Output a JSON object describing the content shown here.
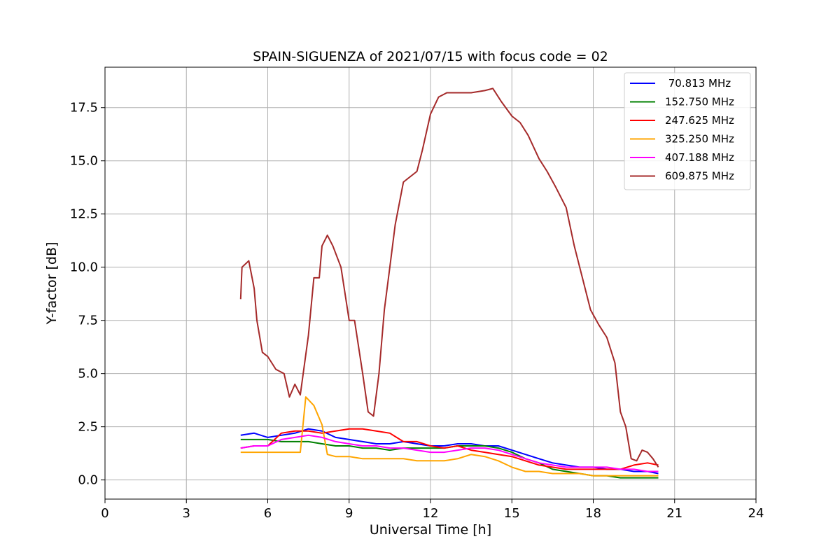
{
  "chart_data": {
    "type": "line",
    "title": "SPAIN-SIGUENZA of 2021/07/15 with focus code = 02",
    "xlabel": "Universal Time [h]",
    "ylabel": "Y-factor [dB]",
    "xlim": [
      0,
      24
    ],
    "ylim": [
      -0.9,
      19.4
    ],
    "xticks": [
      0,
      3,
      6,
      9,
      12,
      15,
      18,
      21,
      24
    ],
    "yticks": [
      0.0,
      2.5,
      5.0,
      7.5,
      10.0,
      12.5,
      15.0,
      17.5
    ],
    "xtick_labels": [
      "0",
      "3",
      "6",
      "9",
      "12",
      "15",
      "18",
      "21",
      "24"
    ],
    "ytick_labels": [
      "0.0",
      "2.5",
      "5.0",
      "7.5",
      "10.0",
      "12.5",
      "15.0",
      "17.5"
    ],
    "grid": true,
    "legend_position": "top-right",
    "series": [
      {
        "name": " 70.813 MHz",
        "color": "#0000ff",
        "x": [
          5.0,
          5.5,
          6.0,
          6.5,
          7.0,
          7.5,
          8.0,
          8.5,
          9.0,
          9.5,
          10.0,
          10.5,
          11.0,
          11.5,
          12.0,
          12.5,
          13.0,
          13.5,
          14.0,
          14.5,
          15.0,
          15.5,
          16.0,
          16.5,
          17.0,
          17.5,
          18.0,
          18.5,
          19.0,
          19.5,
          20.0,
          20.4
        ],
        "y": [
          2.1,
          2.2,
          2.0,
          2.1,
          2.2,
          2.4,
          2.3,
          2.0,
          1.9,
          1.8,
          1.7,
          1.7,
          1.8,
          1.7,
          1.6,
          1.6,
          1.7,
          1.7,
          1.6,
          1.6,
          1.4,
          1.2,
          1.0,
          0.8,
          0.7,
          0.6,
          0.6,
          0.5,
          0.5,
          0.4,
          0.4,
          0.3
        ]
      },
      {
        "name": "152.750 MHz",
        "color": "#008000",
        "x": [
          5.0,
          5.5,
          6.0,
          6.5,
          7.0,
          7.5,
          8.0,
          8.5,
          9.0,
          9.5,
          10.0,
          10.5,
          11.0,
          11.5,
          12.0,
          12.5,
          13.0,
          13.5,
          14.0,
          14.5,
          15.0,
          15.5,
          16.0,
          16.5,
          17.0,
          17.5,
          18.0,
          18.5,
          19.0,
          19.5,
          20.0,
          20.4
        ],
        "y": [
          1.9,
          1.9,
          1.9,
          1.8,
          1.8,
          1.8,
          1.7,
          1.6,
          1.6,
          1.5,
          1.5,
          1.4,
          1.5,
          1.5,
          1.5,
          1.5,
          1.6,
          1.6,
          1.6,
          1.5,
          1.3,
          1.0,
          0.8,
          0.5,
          0.4,
          0.3,
          0.2,
          0.2,
          0.1,
          0.1,
          0.1,
          0.1
        ]
      },
      {
        "name": "247.625 MHz",
        "color": "#ff0000",
        "x": [
          5.0,
          5.5,
          6.0,
          6.5,
          7.0,
          7.5,
          8.0,
          8.5,
          9.0,
          9.5,
          10.0,
          10.5,
          11.0,
          11.5,
          12.0,
          12.5,
          13.0,
          13.5,
          14.0,
          14.5,
          15.0,
          15.5,
          16.0,
          16.5,
          17.0,
          17.5,
          18.0,
          18.5,
          19.0,
          19.5,
          20.0,
          20.4
        ],
        "y": [
          1.5,
          1.6,
          1.6,
          2.2,
          2.3,
          2.3,
          2.2,
          2.3,
          2.4,
          2.4,
          2.3,
          2.2,
          1.8,
          1.8,
          1.6,
          1.5,
          1.6,
          1.4,
          1.3,
          1.2,
          1.1,
          0.9,
          0.7,
          0.6,
          0.5,
          0.5,
          0.5,
          0.5,
          0.5,
          0.7,
          0.8,
          0.7
        ]
      },
      {
        "name": "325.250 MHz",
        "color": "#ffa500",
        "x": [
          5.0,
          5.5,
          6.0,
          6.5,
          7.0,
          7.2,
          7.4,
          7.7,
          8.0,
          8.2,
          8.5,
          9.0,
          9.5,
          10.0,
          10.5,
          11.0,
          11.5,
          12.0,
          12.5,
          13.0,
          13.5,
          14.0,
          14.5,
          15.0,
          15.5,
          16.0,
          16.5,
          17.0,
          17.5,
          18.0,
          18.5,
          19.0,
          19.5,
          20.0,
          20.4
        ],
        "y": [
          1.3,
          1.3,
          1.3,
          1.3,
          1.3,
          1.3,
          3.9,
          3.5,
          2.6,
          1.2,
          1.1,
          1.1,
          1.0,
          1.0,
          1.0,
          1.0,
          0.9,
          0.9,
          0.9,
          1.0,
          1.2,
          1.1,
          0.9,
          0.6,
          0.4,
          0.4,
          0.3,
          0.3,
          0.3,
          0.2,
          0.2,
          0.2,
          0.2,
          0.2,
          0.2
        ]
      },
      {
        "name": "407.188 MHz",
        "color": "#ff00ff",
        "x": [
          5.0,
          5.5,
          6.0,
          6.5,
          7.0,
          7.5,
          8.0,
          8.5,
          9.0,
          9.5,
          10.0,
          10.5,
          11.0,
          11.5,
          12.0,
          12.5,
          13.0,
          13.5,
          14.0,
          14.5,
          15.0,
          15.5,
          16.0,
          16.5,
          17.0,
          17.5,
          18.0,
          18.5,
          19.0,
          19.5,
          20.0,
          20.4
        ],
        "y": [
          1.5,
          1.6,
          1.6,
          1.9,
          2.0,
          2.1,
          2.0,
          1.8,
          1.7,
          1.6,
          1.6,
          1.5,
          1.5,
          1.4,
          1.3,
          1.3,
          1.4,
          1.5,
          1.5,
          1.4,
          1.2,
          1.0,
          0.8,
          0.7,
          0.6,
          0.6,
          0.6,
          0.6,
          0.5,
          0.5,
          0.4,
          0.4
        ]
      },
      {
        "name": "609.875 MHz",
        "color": "#a52a2a",
        "x": [
          5.0,
          5.05,
          5.3,
          5.5,
          5.6,
          5.8,
          6.0,
          6.3,
          6.6,
          6.8,
          7.0,
          7.2,
          7.5,
          7.7,
          7.9,
          8.0,
          8.2,
          8.4,
          8.7,
          9.0,
          9.2,
          9.5,
          9.7,
          9.9,
          10.1,
          10.3,
          10.5,
          10.7,
          11.0,
          11.2,
          11.5,
          11.7,
          12.0,
          12.3,
          12.6,
          13.0,
          13.5,
          14.0,
          14.3,
          14.6,
          15.0,
          15.3,
          15.6,
          16.0,
          16.3,
          16.6,
          17.0,
          17.3,
          17.6,
          17.9,
          18.2,
          18.5,
          18.8,
          19.0,
          19.2,
          19.4,
          19.6,
          19.8,
          20.0,
          20.2,
          20.4
        ],
        "y": [
          8.5,
          10.0,
          10.3,
          9.0,
          7.5,
          6.0,
          5.8,
          5.2,
          5.0,
          3.9,
          4.5,
          4.0,
          6.8,
          9.5,
          9.5,
          11.0,
          11.5,
          11.0,
          10.0,
          7.5,
          7.5,
          5.0,
          3.2,
          3.0,
          5.0,
          8.0,
          10.0,
          12.0,
          14.0,
          14.2,
          14.5,
          15.5,
          17.2,
          18.0,
          18.2,
          18.2,
          18.2,
          18.3,
          18.4,
          17.8,
          17.1,
          16.8,
          16.2,
          15.1,
          14.5,
          13.8,
          12.8,
          11.0,
          9.5,
          8.0,
          7.3,
          6.7,
          5.5,
          3.2,
          2.5,
          1.0,
          0.9,
          1.4,
          1.3,
          1.0,
          0.6
        ]
      }
    ]
  }
}
